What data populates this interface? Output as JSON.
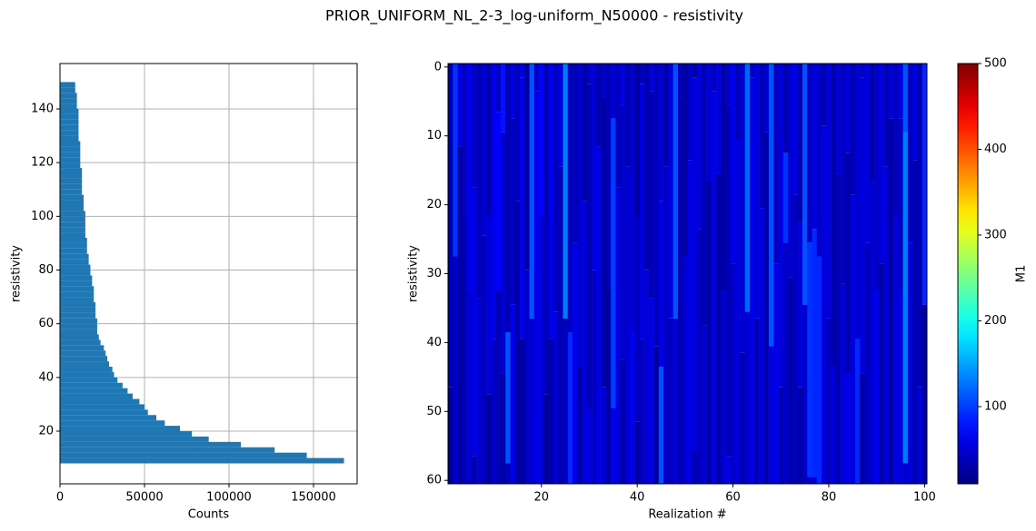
{
  "title": "PRIOR_UNIFORM_NL_2-3_log-uniform_N50000 - resistivity",
  "chart_data": [
    {
      "type": "histogram",
      "orientation": "horizontal",
      "xlabel": "Counts",
      "ylabel": "resistivity",
      "color": "#1f77b4",
      "grid": true,
      "bins": [
        8,
        10,
        12,
        14,
        16,
        18,
        20,
        22,
        24,
        26,
        28,
        30,
        32,
        34,
        36,
        38,
        40,
        42,
        44,
        46,
        48,
        50,
        52,
        54,
        56,
        58,
        60,
        62,
        64,
        66,
        68,
        70,
        72,
        74,
        76,
        78,
        80,
        82,
        84,
        86,
        88,
        90,
        92,
        94,
        96,
        98,
        100,
        102,
        104,
        106,
        108,
        110,
        112,
        114,
        116,
        118,
        120,
        122,
        124,
        126,
        128,
        130,
        132,
        134,
        136,
        138,
        140,
        142,
        144,
        146,
        148,
        150
      ],
      "values": [
        168000,
        146000,
        127000,
        107000,
        88000,
        78000,
        71000,
        62000,
        57000,
        52000,
        50000,
        47000,
        43000,
        40000,
        37000,
        34000,
        32000,
        31000,
        29000,
        28000,
        27000,
        26000,
        24000,
        23000,
        22000,
        22000,
        22000,
        21000,
        21000,
        21000,
        20000,
        20000,
        20000,
        19000,
        19000,
        18000,
        18000,
        17000,
        17000,
        16000,
        16000,
        16000,
        15000,
        15000,
        15000,
        15000,
        15000,
        14000,
        14000,
        14000,
        13000,
        13000,
        13000,
        13000,
        13000,
        12000,
        12000,
        12000,
        12000,
        12000,
        11000,
        11000,
        11000,
        11000,
        11000,
        11000,
        10000,
        10000,
        10000,
        9000,
        9000
      ],
      "xlim": [
        0,
        175800
      ],
      "xticks": [
        0,
        50000,
        100000,
        150000
      ],
      "ylim": [
        0.4,
        156.9
      ],
      "yticks": [
        20,
        40,
        60,
        80,
        100,
        120,
        140
      ]
    },
    {
      "type": "heatmap",
      "xlabel": "Realization #",
      "ylabel": "resistivity",
      "colormap": "jet",
      "x": [
        1,
        2,
        3,
        4,
        5,
        6,
        7,
        8,
        9,
        10,
        11,
        12,
        13,
        14,
        15,
        16,
        17,
        18,
        19,
        20,
        21,
        22,
        23,
        24,
        25,
        26,
        27,
        28,
        29,
        30,
        31,
        32,
        33,
        34,
        35,
        36,
        37,
        38,
        39,
        40,
        41,
        42,
        43,
        44,
        45,
        46,
        47,
        48,
        49,
        50,
        51,
        52,
        53,
        54,
        55,
        56,
        57,
        58,
        59,
        60,
        61,
        62,
        63,
        64,
        65,
        66,
        67,
        68,
        69,
        70,
        71,
        72,
        73,
        74,
        75,
        76,
        77,
        78,
        79,
        80,
        81,
        82,
        83,
        84,
        85,
        86,
        87,
        88,
        89,
        90,
        91,
        92,
        93,
        94,
        95,
        96,
        97,
        98,
        99,
        100
      ],
      "columns": [
        [
          [
            0,
            30
          ],
          [
            47,
            20
          ]
        ],
        [
          [
            0,
            95
          ],
          [
            28,
            45
          ]
        ],
        [
          [
            0,
            55
          ],
          [
            12,
            30
          ]
        ],
        [
          [
            0,
            40
          ],
          [
            22,
            35
          ]
        ],
        [
          [
            0,
            60
          ],
          [
            33,
            50
          ]
        ],
        [
          [
            0,
            45
          ],
          [
            18,
            60
          ],
          [
            57,
            30
          ]
        ],
        [
          [
            0,
            35
          ],
          [
            34,
            50
          ]
        ],
        [
          [
            0,
            50
          ],
          [
            25,
            40
          ]
        ],
        [
          [
            0,
            30
          ],
          [
            22,
            55
          ],
          [
            48,
            25
          ]
        ],
        [
          [
            0,
            60
          ],
          [
            40,
            45
          ]
        ],
        [
          [
            0,
            45
          ],
          [
            7,
            70
          ],
          [
            33,
            35
          ]
        ],
        [
          [
            0,
            80
          ],
          [
            10,
            50
          ],
          [
            45,
            30
          ]
        ],
        [
          [
            0,
            35
          ],
          [
            39,
            110
          ],
          [
            58,
            40
          ]
        ],
        [
          [
            0,
            55
          ],
          [
            8,
            40
          ],
          [
            35,
            60
          ]
        ],
        [
          [
            0,
            40
          ],
          [
            20,
            30
          ]
        ],
        [
          [
            0,
            55
          ],
          [
            2,
            60
          ],
          [
            40,
            25
          ]
        ],
        [
          [
            0,
            25
          ],
          [
            30,
            45
          ]
        ],
        [
          [
            0,
            110
          ],
          [
            37,
            50
          ]
        ],
        [
          [
            0,
            45
          ],
          [
            4,
            60
          ]
        ],
        [
          [
            0,
            70
          ],
          [
            22,
            55
          ]
        ],
        [
          [
            0,
            35
          ],
          [
            48,
            20
          ]
        ],
        [
          [
            0,
            60
          ],
          [
            40,
            30
          ]
        ],
        [
          [
            0,
            40
          ],
          [
            36,
            55
          ]
        ],
        [
          [
            0,
            55
          ],
          [
            15,
            35
          ]
        ],
        [
          [
            0,
            130
          ],
          [
            37,
            40
          ]
        ],
        [
          [
            0,
            40
          ],
          [
            39,
            90
          ]
        ],
        [
          [
            0,
            35
          ],
          [
            26,
            60
          ]
        ],
        [
          [
            0,
            50
          ],
          [
            44,
            30
          ]
        ],
        [
          [
            0,
            30
          ],
          [
            20,
            55
          ]
        ],
        [
          [
            0,
            45
          ],
          [
            3,
            35
          ],
          [
            50,
            55
          ]
        ],
        [
          [
            0,
            55
          ],
          [
            30,
            40
          ]
        ],
        [
          [
            0,
            30
          ],
          [
            12,
            60
          ]
        ],
        [
          [
            0,
            45
          ],
          [
            5,
            30
          ],
          [
            47,
            50
          ]
        ],
        [
          [
            0,
            35
          ],
          [
            33,
            25
          ]
        ],
        [
          [
            0,
            50
          ],
          [
            8,
            100
          ],
          [
            50,
            60
          ]
        ],
        [
          [
            0,
            40
          ],
          [
            18,
            55
          ]
        ],
        [
          [
            0,
            60
          ],
          [
            6,
            45
          ],
          [
            43,
            30
          ]
        ],
        [
          [
            0,
            35
          ],
          [
            15,
            50
          ]
        ],
        [
          [
            0,
            50
          ],
          [
            39,
            65
          ]
        ],
        [
          [
            0,
            25
          ],
          [
            22,
            40
          ],
          [
            52,
            25
          ]
        ],
        [
          [
            0,
            40
          ],
          [
            3,
            55
          ],
          [
            40,
            40
          ]
        ],
        [
          [
            0,
            30
          ],
          [
            30,
            50
          ]
        ],
        [
          [
            0,
            55
          ],
          [
            4,
            35
          ],
          [
            34,
            60
          ]
        ],
        [
          [
            0,
            40
          ],
          [
            41,
            25
          ]
        ],
        [
          [
            0,
            50
          ],
          [
            20,
            60
          ],
          [
            44,
            110
          ]
        ],
        [
          [
            0,
            30
          ],
          [
            15,
            45
          ]
        ],
        [
          [
            0,
            55
          ],
          [
            37,
            40
          ]
        ],
        [
          [
            0,
            110
          ],
          [
            37,
            55
          ]
        ],
        [
          [
            0,
            40
          ],
          [
            5,
            35
          ]
        ],
        [
          [
            0,
            25
          ],
          [
            28,
            50
          ]
        ],
        [
          [
            0,
            45
          ],
          [
            14,
            60
          ]
        ],
        [
          [
            0,
            30
          ],
          [
            2,
            55
          ],
          [
            56,
            35
          ]
        ],
        [
          [
            0,
            55
          ],
          [
            24,
            40
          ]
        ],
        [
          [
            0,
            35
          ],
          [
            38,
            50
          ]
        ],
        [
          [
            0,
            50
          ],
          [
            17,
            30
          ]
        ],
        [
          [
            0,
            40
          ],
          [
            4,
            60
          ]
        ],
        [
          [
            0,
            55
          ],
          [
            16,
            30
          ]
        ],
        [
          [
            0,
            30
          ],
          [
            33,
            50
          ]
        ],
        [
          [
            0,
            45
          ],
          [
            6,
            35
          ],
          [
            57,
            60
          ]
        ],
        [
          [
            0,
            60
          ],
          [
            29,
            45
          ]
        ],
        [
          [
            0,
            35
          ],
          [
            11,
            55
          ]
        ],
        [
          [
            0,
            50
          ],
          [
            42,
            30
          ]
        ],
        [
          [
            0,
            120
          ],
          [
            36,
            50
          ]
        ],
        [
          [
            0,
            40
          ],
          [
            2,
            60
          ]
        ],
        [
          [
            0,
            55
          ],
          [
            37,
            35
          ]
        ],
        [
          [
            0,
            35
          ],
          [
            21,
            55
          ]
        ],
        [
          [
            0,
            50
          ],
          [
            10,
            30
          ]
        ],
        [
          [
            0,
            110
          ],
          [
            41,
            55
          ]
        ],
        [
          [
            0,
            40
          ],
          [
            29,
            60
          ]
        ],
        [
          [
            0,
            55
          ],
          [
            47,
            35
          ]
        ],
        [
          [
            0,
            35
          ],
          [
            13,
            95
          ],
          [
            26,
            45
          ]
        ],
        [
          [
            0,
            50
          ],
          [
            31,
            30
          ]
        ],
        [
          [
            0,
            60
          ],
          [
            19,
            40
          ]
        ],
        [
          [
            0,
            35
          ],
          [
            23,
            55
          ],
          [
            47,
            30
          ]
        ],
        [
          [
            0,
            110
          ],
          [
            35,
            45
          ]
        ],
        [
          [
            0,
            40
          ],
          [
            26,
            95
          ],
          [
            60,
            40
          ]
        ],
        [
          [
            0,
            55
          ],
          [
            24,
            90
          ],
          [
            60,
            50
          ]
        ],
        [
          [
            0,
            45
          ],
          [
            28,
            90
          ]
        ],
        [
          [
            0,
            35
          ],
          [
            9,
            55
          ]
        ],
        [
          [
            0,
            55
          ],
          [
            37,
            40
          ]
        ],
        [
          [
            0,
            30
          ],
          [
            44,
            55
          ]
        ],
        [
          [
            0,
            50
          ],
          [
            16,
            35
          ]
        ],
        [
          [
            0,
            40
          ],
          [
            32,
            55
          ]
        ],
        [
          [
            0,
            55
          ],
          [
            13,
            30
          ],
          [
            45,
            60
          ]
        ],
        [
          [
            0,
            35
          ],
          [
            19,
            55
          ]
        ],
        [
          [
            0,
            50
          ],
          [
            40,
            90
          ]
        ],
        [
          [
            0,
            40
          ],
          [
            2,
            55
          ],
          [
            45,
            30
          ]
        ],
        [
          [
            0,
            55
          ],
          [
            26,
            40
          ]
        ],
        [
          [
            0,
            30
          ],
          [
            17,
            50
          ]
        ],
        [
          [
            0,
            45
          ],
          [
            33,
            60
          ]
        ],
        [
          [
            0,
            55
          ],
          [
            29,
            30
          ]
        ],
        [
          [
            0,
            35
          ],
          [
            15,
            55
          ]
        ],
        [
          [
            0,
            50
          ],
          [
            8,
            30
          ]
        ],
        [
          [
            0,
            40
          ],
          [
            22,
            55
          ]
        ],
        [
          [
            0,
            55
          ],
          [
            8,
            40
          ],
          [
            33,
            55
          ]
        ],
        [
          [
            0,
            110
          ],
          [
            10,
            130
          ],
          [
            58,
            50
          ]
        ],
        [
          [
            0,
            40
          ],
          [
            26,
            55
          ]
        ],
        [
          [
            0,
            55
          ],
          [
            14,
            35
          ]
        ],
        [
          [
            0,
            35
          ],
          [
            47,
            55
          ]
        ],
        [
          [
            0,
            90
          ],
          [
            35,
            25
          ]
        ]
      ],
      "xlim": [
        0.5,
        100.5
      ],
      "xticks": [
        20,
        40,
        60,
        80,
        100
      ],
      "ylim": [
        60.5,
        -0.5
      ],
      "yticks": [
        0,
        10,
        20,
        30,
        40,
        50,
        60
      ],
      "colorbar": {
        "label": "M1",
        "lim": [
          10,
          500
        ],
        "ticks": [
          100,
          200,
          300,
          400,
          500
        ]
      }
    }
  ]
}
